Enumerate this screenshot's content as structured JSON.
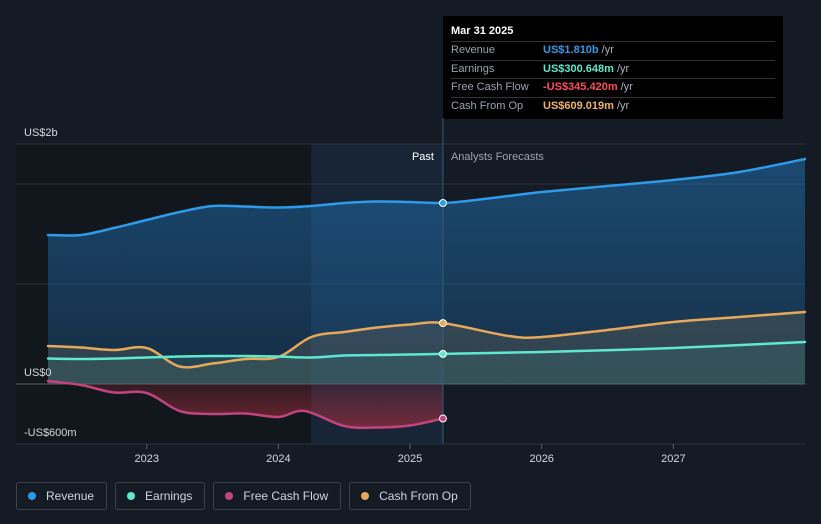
{
  "tooltip": {
    "date": "Mar 31 2025",
    "rows": [
      {
        "label": "Revenue",
        "value": "US$1.810b",
        "unit": "/yr",
        "color": "#2e9be8"
      },
      {
        "label": "Earnings",
        "value": "US$300.648m",
        "unit": "/yr",
        "color": "#5ee8cf"
      },
      {
        "label": "Free Cash Flow",
        "value": "-US$345.420m",
        "unit": "/yr",
        "color": "#ff4d5e"
      },
      {
        "label": "Cash From Op",
        "value": "US$609.019m",
        "unit": "/yr",
        "color": "#f0b265"
      }
    ]
  },
  "sections": {
    "past": "Past",
    "forecast": "Analysts Forecasts"
  },
  "legend": [
    {
      "label": "Revenue",
      "color": "#2e9be8"
    },
    {
      "label": "Earnings",
      "color": "#5ee8cf"
    },
    {
      "label": "Free Cash Flow",
      "color": "#c0447e"
    },
    {
      "label": "Cash From Op",
      "color": "#e8a85a"
    }
  ],
  "chart_data": {
    "type": "line",
    "y_tick_labels": [
      "US$2b",
      "US$0",
      "-US$600m"
    ],
    "y_ticks": [
      2400,
      0,
      -600
    ],
    "ylim": [
      -600,
      2400
    ],
    "xlim": [
      2022.25,
      2028.0
    ],
    "x_tick_labels": [
      "2023",
      "2024",
      "2025",
      "2026",
      "2027"
    ],
    "x_ticks": [
      2023,
      2024,
      2025,
      2026,
      2027
    ],
    "past_end": 2025.25,
    "shaded_start": 2024.25,
    "series": [
      {
        "name": "Revenue",
        "color": "#2e9be8",
        "points": [
          [
            2022.25,
            1490
          ],
          [
            2022.5,
            1490
          ],
          [
            2022.75,
            1560
          ],
          [
            2023.0,
            1640
          ],
          [
            2023.25,
            1720
          ],
          [
            2023.5,
            1780
          ],
          [
            2023.75,
            1775
          ],
          [
            2024.0,
            1765
          ],
          [
            2024.25,
            1780
          ],
          [
            2024.5,
            1810
          ],
          [
            2024.75,
            1825
          ],
          [
            2025.0,
            1820
          ],
          [
            2025.25,
            1810
          ],
          [
            2025.5,
            1840
          ],
          [
            2025.75,
            1880
          ],
          [
            2026.0,
            1920
          ],
          [
            2026.5,
            1980
          ],
          [
            2027.0,
            2040
          ],
          [
            2027.5,
            2120
          ],
          [
            2028.0,
            2250
          ]
        ]
      },
      {
        "name": "Earnings",
        "color": "#5ee8cf",
        "points": [
          [
            2022.25,
            255
          ],
          [
            2022.5,
            250
          ],
          [
            2022.75,
            255
          ],
          [
            2023.0,
            265
          ],
          [
            2023.25,
            275
          ],
          [
            2023.5,
            280
          ],
          [
            2023.75,
            280
          ],
          [
            2024.0,
            275
          ],
          [
            2024.25,
            265
          ],
          [
            2024.5,
            285
          ],
          [
            2024.75,
            290
          ],
          [
            2025.0,
            295
          ],
          [
            2025.25,
            300.648
          ],
          [
            2026.0,
            320
          ],
          [
            2027.0,
            360
          ],
          [
            2028.0,
            420
          ]
        ]
      },
      {
        "name": "Free Cash Flow",
        "color": "#c0447e",
        "points": [
          [
            2022.25,
            30
          ],
          [
            2022.5,
            -10
          ],
          [
            2022.75,
            -85
          ],
          [
            2023.0,
            -90
          ],
          [
            2023.25,
            -270
          ],
          [
            2023.5,
            -300
          ],
          [
            2023.75,
            -295
          ],
          [
            2024.0,
            -330
          ],
          [
            2024.2,
            -270
          ],
          [
            2024.5,
            -420
          ],
          [
            2024.75,
            -435
          ],
          [
            2025.0,
            -415
          ],
          [
            2025.25,
            -345.42
          ]
        ]
      },
      {
        "name": "Cash From Op",
        "color": "#e8a85a",
        "points": [
          [
            2022.25,
            380
          ],
          [
            2022.5,
            365
          ],
          [
            2022.75,
            340
          ],
          [
            2023.0,
            360
          ],
          [
            2023.25,
            175
          ],
          [
            2023.5,
            205
          ],
          [
            2023.75,
            250
          ],
          [
            2024.0,
            270
          ],
          [
            2024.25,
            470
          ],
          [
            2024.5,
            520
          ],
          [
            2024.75,
            565
          ],
          [
            2025.0,
            595
          ],
          [
            2025.25,
            609.019
          ],
          [
            2025.75,
            480
          ],
          [
            2026.0,
            470
          ],
          [
            2026.5,
            540
          ],
          [
            2027.0,
            620
          ],
          [
            2027.5,
            670
          ],
          [
            2028.0,
            720
          ]
        ]
      }
    ]
  }
}
